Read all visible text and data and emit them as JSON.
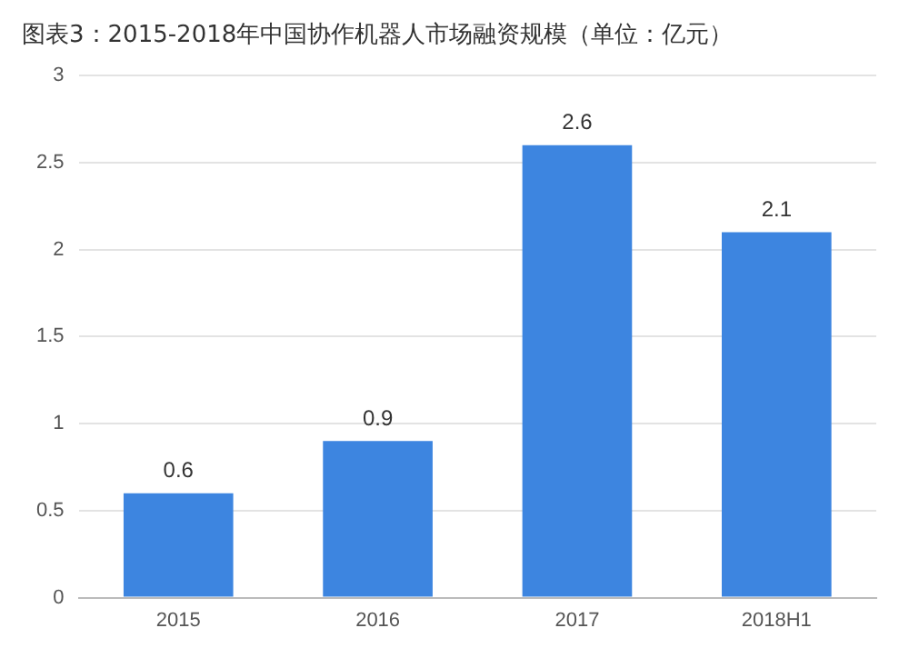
{
  "chart_data": {
    "type": "bar",
    "title": "图表3：2015-2018年中国协作机器人市场融资规模（单位：亿元）",
    "categories": [
      "2015",
      "2016",
      "2017",
      "2018H1"
    ],
    "values": [
      0.6,
      0.9,
      2.6,
      2.1
    ],
    "color": "#3d85e0",
    "ylim": [
      0,
      3
    ],
    "yticks": [
      0,
      0.5,
      1,
      1.5,
      2,
      2.5,
      3
    ],
    "grid": "y",
    "data_labels": true
  }
}
